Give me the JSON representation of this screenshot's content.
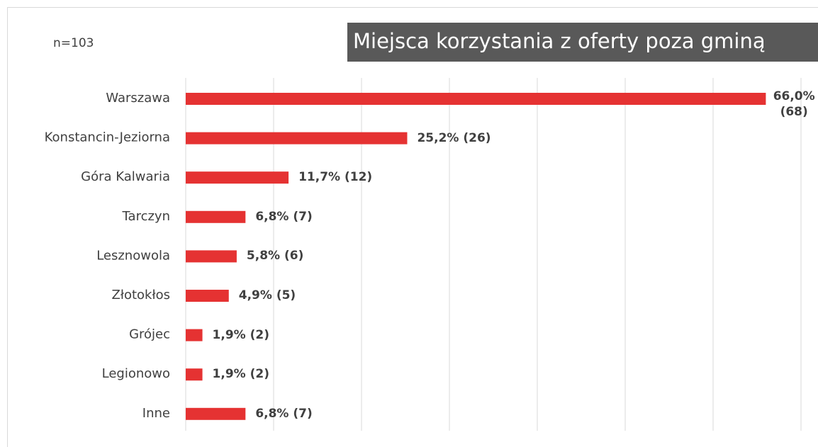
{
  "chart_data": {
    "type": "bar",
    "orientation": "horizontal",
    "title": "Miejsca korzystania z oferty poza gminą",
    "note": "n=103",
    "categories": [
      "Warszawa",
      "Konstancin-Jeziorna",
      "Góra Kalwaria",
      "Tarczyn",
      "Lesznowola",
      "Złotokłos",
      "Grójec",
      "Legionowo",
      "Inne"
    ],
    "values": [
      66.0,
      25.2,
      11.7,
      6.8,
      5.8,
      4.9,
      1.9,
      1.9,
      6.8
    ],
    "value_labels": [
      "66,0% (68)",
      "25,2% (26)",
      "11,7% (12)",
      "6,8% (7)",
      "5,8% (6)",
      "4,9% (5)",
      "1,9% (2)",
      "1,9% (2)",
      "6,8% (7)"
    ],
    "color": "#e53232",
    "xlim": [
      0,
      70
    ],
    "xticks": [
      0,
      10,
      20,
      30,
      40,
      50,
      60,
      70
    ],
    "grid": true
  }
}
